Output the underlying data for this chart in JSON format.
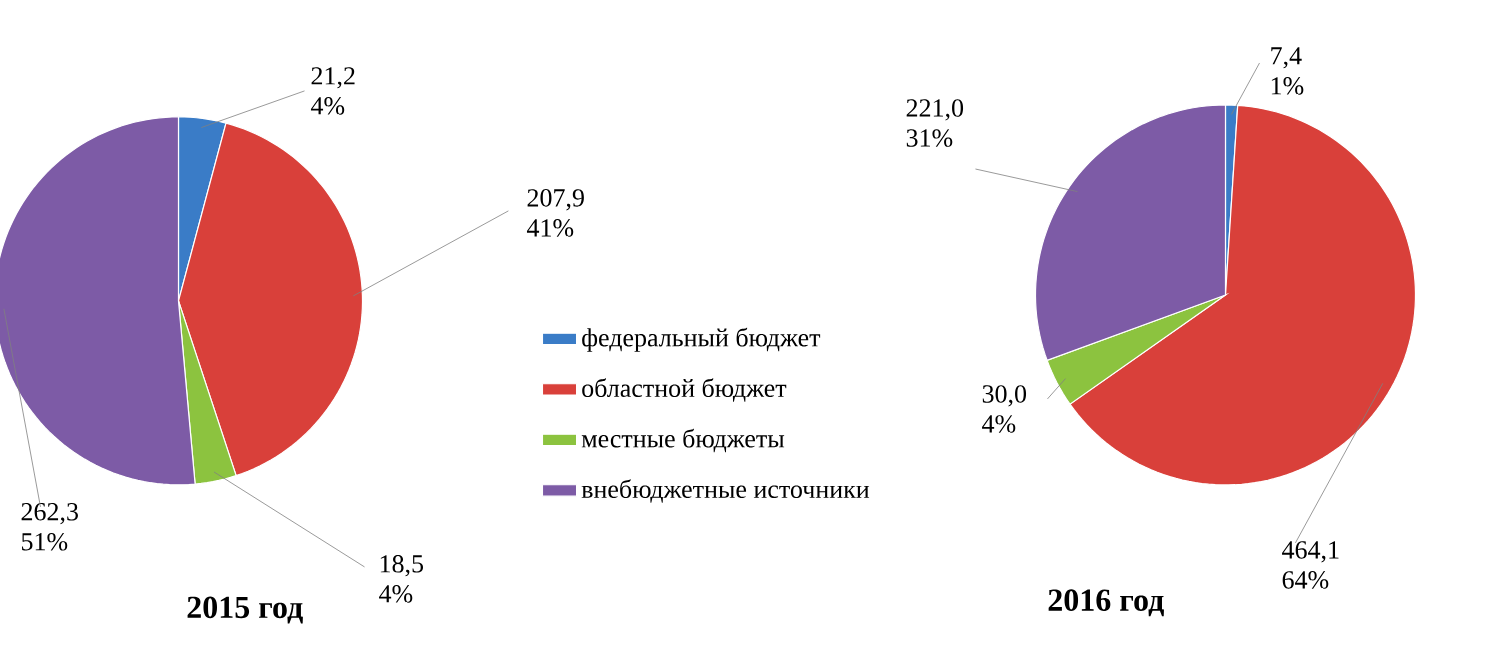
{
  "chart_data": [
    {
      "type": "pie",
      "title": "2015 год",
      "categories": [
        "федеральный бюджет",
        "областной бюджет",
        "местные бюджеты",
        "внебюджетные источники"
      ],
      "values": [
        21.2,
        207.9,
        18.5,
        262.3
      ],
      "colors": [
        "#3a7cc7",
        "#d9403a",
        "#8cc33f",
        "#7d5ba6"
      ],
      "value_labels": [
        "21,2 4%",
        "207,9 41%",
        "18,5 4%",
        "262,3 51%"
      ],
      "legend": "right"
    },
    {
      "type": "pie",
      "title": "2016 год",
      "categories": [
        null,
        null,
        null,
        null
      ],
      "values": [
        7.4,
        464.1,
        30.0,
        221.0
      ],
      "colors": [
        "#3a7cc7",
        "#d9403a",
        "#8cc33f",
        "#7d5ba6"
      ],
      "value_labels": [
        "7,4 1%",
        "464,1 64%",
        "30,0 4%",
        "221,0 31%"
      ],
      "legend": false
    }
  ]
}
